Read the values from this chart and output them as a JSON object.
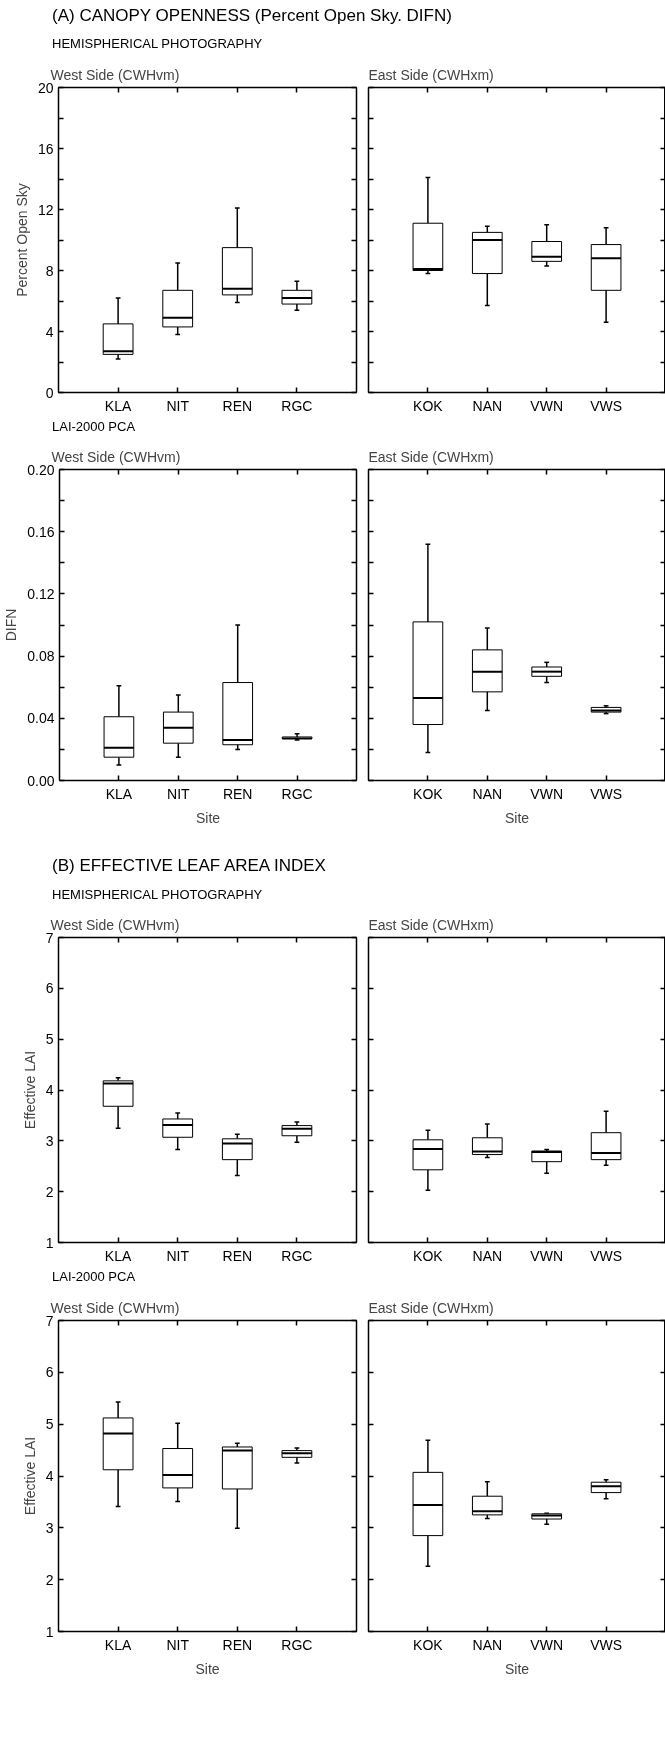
{
  "chart_data": [
    {
      "type": "box",
      "annotations": [
        "(A) CANOPY OPENNESS (Percent Open Sky. DIFN)"
      ],
      "subtitle": "HEMISPHERICAL PHOTOGRAPHY",
      "title": "West Side (CWHvm)",
      "ylabel": "Percent Open Sky",
      "categories": [
        "KLA",
        "NIT",
        "REN",
        "RGC"
      ],
      "boxes": [
        {
          "low": 2.2,
          "q1": 2.5,
          "median": 2.7,
          "q3": 4.5,
          "high": 6.2
        },
        {
          "low": 3.8,
          "q1": 4.3,
          "median": 4.9,
          "q3": 6.7,
          "high": 8.5
        },
        {
          "low": 5.9,
          "q1": 6.4,
          "median": 6.8,
          "q3": 9.5,
          "high": 12.1
        },
        {
          "low": 5.4,
          "q1": 5.8,
          "median": 6.2,
          "q3": 6.7,
          "high": 7.3
        }
      ],
      "ylim": [
        0,
        20
      ],
      "yticks": [
        0,
        {
          "value": 2,
          "label": null
        },
        4,
        {
          "value": 6,
          "label": null
        },
        8,
        {
          "value": 10,
          "label": null
        },
        12,
        {
          "value": 14,
          "label": null
        },
        16,
        {
          "value": 18,
          "label": null
        },
        20
      ]
    },
    {
      "type": "box",
      "title": "East Side (CWHxm)",
      "categories": [
        "KOK",
        "NAN",
        "VWN",
        "VWS"
      ],
      "boxes": [
        {
          "low": 7.8,
          "q1": 8.0,
          "median": 8.1,
          "q3": 11.1,
          "high": 14.1
        },
        {
          "low": 5.7,
          "q1": 7.8,
          "median": 10.0,
          "q3": 10.5,
          "high": 10.9
        },
        {
          "low": 8.3,
          "q1": 8.6,
          "median": 8.9,
          "q3": 9.9,
          "high": 11.0
        },
        {
          "low": 4.6,
          "q1": 6.7,
          "median": 8.8,
          "q3": 9.7,
          "high": 10.8
        }
      ],
      "ylim": [
        0,
        20
      ],
      "yticks": [
        0,
        2,
        4,
        6,
        8,
        10,
        12,
        14,
        16,
        18,
        20
      ],
      "tick_labels": "x"
    },
    {
      "type": "box",
      "subtitle": "LAI-2000 PCA",
      "title": "West Side (CWHvm)",
      "ylabel": "DIFN",
      "xlabel": "Site",
      "categories": [
        "KLA",
        "NIT",
        "REN",
        "RGC"
      ],
      "boxes": [
        {
          "low": 0.01,
          "q1": 0.015,
          "median": 0.021,
          "q3": 0.041,
          "high": 0.061
        },
        {
          "low": 0.015,
          "q1": 0.024,
          "median": 0.034,
          "q3": 0.044,
          "high": 0.055
        },
        {
          "low": 0.02,
          "q1": 0.023,
          "median": 0.026,
          "q3": 0.063,
          "high": 0.1
        },
        {
          "low": 0.026,
          "q1": 0.027,
          "median": 0.027,
          "q3": 0.028,
          "high": 0.03
        }
      ],
      "ylim": [
        0,
        0.2
      ],
      "yticks": [
        {
          "value": 0,
          "label": "0.00"
        },
        {
          "value": 0.02,
          "label": null
        },
        {
          "value": 0.04,
          "label": "0.04"
        },
        {
          "value": 0.06,
          "label": null
        },
        {
          "value": 0.08,
          "label": "0.08"
        },
        {
          "value": 0.1,
          "label": null
        },
        {
          "value": 0.12,
          "label": "0.12"
        },
        {
          "value": 0.14,
          "label": null
        },
        {
          "value": 0.16,
          "label": "0.16"
        },
        {
          "value": 0.18,
          "label": null
        },
        {
          "value": 0.2,
          "label": "0.20"
        }
      ]
    },
    {
      "type": "box",
      "title": "East Side (CWHxm)",
      "xlabel": "Site",
      "categories": [
        "KOK",
        "NAN",
        "VWN",
        "VWS"
      ],
      "boxes": [
        {
          "low": 0.018,
          "q1": 0.036,
          "median": 0.053,
          "q3": 0.102,
          "high": 0.152
        },
        {
          "low": 0.045,
          "q1": 0.057,
          "median": 0.07,
          "q3": 0.084,
          "high": 0.098
        },
        {
          "low": 0.063,
          "q1": 0.067,
          "median": 0.07,
          "q3": 0.073,
          "high": 0.076
        },
        {
          "low": 0.043,
          "q1": 0.044,
          "median": 0.045,
          "q3": 0.047,
          "high": 0.048
        }
      ],
      "ylim": [
        0,
        0.2
      ],
      "yticks": [
        0,
        0.02,
        0.04,
        0.06,
        0.08,
        0.1,
        0.12,
        0.14,
        0.16,
        0.18,
        0.2
      ],
      "tick_labels": "x"
    },
    {
      "type": "box",
      "annotations": [
        "(B) EFFECTIVE LEAF AREA INDEX"
      ],
      "subtitle": "HEMISPHERICAL PHOTOGRAPHY",
      "title": "West Side (CWHvm)",
      "ylabel": "Effective LAI",
      "categories": [
        "KLA",
        "NIT",
        "REN",
        "RGC"
      ],
      "boxes": [
        {
          "low": 3.25,
          "q1": 3.68,
          "median": 4.13,
          "q3": 4.18,
          "high": 4.24
        },
        {
          "low": 2.83,
          "q1": 3.07,
          "median": 3.31,
          "q3": 3.43,
          "high": 3.55
        },
        {
          "low": 2.32,
          "q1": 2.63,
          "median": 2.95,
          "q3": 3.04,
          "high": 3.13
        },
        {
          "low": 2.97,
          "q1": 3.1,
          "median": 3.24,
          "q3": 3.3,
          "high": 3.37
        }
      ],
      "ylim": [
        1,
        7
      ],
      "yticks": [
        1,
        2,
        3,
        4,
        5,
        6,
        7
      ]
    },
    {
      "type": "box",
      "title": "East Side (CWHxm)",
      "categories": [
        "KOK",
        "NAN",
        "VWN",
        "VWS"
      ],
      "boxes": [
        {
          "low": 2.03,
          "q1": 2.43,
          "median": 2.84,
          "q3": 3.02,
          "high": 3.21
        },
        {
          "low": 2.67,
          "q1": 2.73,
          "median": 2.79,
          "q3": 3.06,
          "high": 3.33
        },
        {
          "low": 2.36,
          "q1": 2.59,
          "median": 2.78,
          "q3": 2.8,
          "high": 2.83
        },
        {
          "low": 2.52,
          "q1": 2.63,
          "median": 2.76,
          "q3": 3.16,
          "high": 3.58
        }
      ],
      "ylim": [
        1,
        7
      ],
      "yticks": [
        1,
        2,
        3,
        4,
        5,
        6,
        7
      ],
      "tick_labels": "x"
    },
    {
      "type": "box",
      "subtitle": "LAI-2000 PCA",
      "title": "West Side (CWHvm)",
      "ylabel": "Effective LAI",
      "xlabel": "Site",
      "categories": [
        "KLA",
        "NIT",
        "REN",
        "RGC"
      ],
      "boxes": [
        {
          "low": 3.41,
          "q1": 4.12,
          "median": 4.82,
          "q3": 5.12,
          "high": 5.43
        },
        {
          "low": 3.51,
          "q1": 3.77,
          "median": 4.02,
          "q3": 4.53,
          "high": 5.02
        },
        {
          "low": 2.99,
          "q1": 3.75,
          "median": 4.49,
          "q3": 4.56,
          "high": 4.63
        },
        {
          "low": 4.25,
          "q1": 4.36,
          "median": 4.44,
          "q3": 4.49,
          "high": 4.54
        }
      ],
      "ylim": [
        1,
        7
      ],
      "yticks": [
        1,
        2,
        3,
        4,
        5,
        6,
        7
      ]
    },
    {
      "type": "box",
      "title": "East Side (CWHxm)",
      "xlabel": "Site",
      "categories": [
        "KOK",
        "NAN",
        "VWN",
        "VWS"
      ],
      "boxes": [
        {
          "low": 2.26,
          "q1": 2.85,
          "median": 3.44,
          "q3": 4.07,
          "high": 4.69
        },
        {
          "low": 3.18,
          "q1": 3.25,
          "median": 3.32,
          "q3": 3.61,
          "high": 3.89
        },
        {
          "low": 3.07,
          "q1": 3.17,
          "median": 3.24,
          "q3": 3.27,
          "high": 3.28
        },
        {
          "low": 3.56,
          "q1": 3.68,
          "median": 3.8,
          "q3": 3.88,
          "high": 3.93
        }
      ],
      "ylim": [
        1,
        7
      ],
      "yticks": [
        1,
        2,
        3,
        4,
        5,
        6,
        7
      ],
      "tick_labels": "x"
    }
  ]
}
